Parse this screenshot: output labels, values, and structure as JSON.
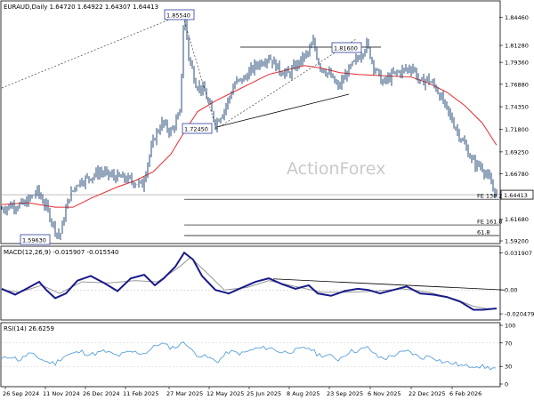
{
  "chart_data": [
    {
      "type": "line",
      "panel": "price",
      "title": "EURAUD,Daily  1.64720 1.64922 1.64307 1.64413",
      "watermark": "ActionForex",
      "ylim": [
        1.59,
        1.862
      ],
      "yticks": [
        1.8446,
        1.8128,
        1.7936,
        1.7688,
        1.7435,
        1.718,
        1.6925,
        1.6678,
        1.64413,
        1.6168,
        1.592
      ],
      "ytick_labels": [
        "1.84460",
        "1.81280",
        "1.79360",
        "1.76880",
        "1.74350",
        "1.71800",
        "1.69250",
        "1.66780",
        "1.64413",
        "1.61680",
        "1.59200"
      ],
      "current_price": 1.64413,
      "current_price_label": "1.64413",
      "x_dates": [
        "26 Sep 2024",
        "11 Nov 2024",
        "26 Dec 2024",
        "11 Feb 2025",
        "27 Mar 2025",
        "12 May 2025",
        "25 Jun 2025",
        "8 Aug 2025",
        "23 Sep 2025",
        "6 Nov 2025",
        "22 Dec 2025",
        "6 Feb 2026"
      ],
      "close_series": {
        "name": "EURAUD close",
        "color": "#2a4d78",
        "points": [
          [
            0,
            1.628
          ],
          [
            10,
            1.632
          ],
          [
            25,
            1.633
          ],
          [
            40,
            1.648
          ],
          [
            50,
            1.63
          ],
          [
            60,
            1.605
          ],
          [
            65,
            1.5963
          ],
          [
            75,
            1.64
          ],
          [
            85,
            1.658
          ],
          [
            95,
            1.662
          ],
          [
            110,
            1.67
          ],
          [
            125,
            1.665
          ],
          [
            140,
            1.662
          ],
          [
            150,
            1.658
          ],
          [
            158,
            1.655
          ],
          [
            165,
            1.685
          ],
          [
            172,
            1.71
          ],
          [
            180,
            1.725
          ],
          [
            190,
            1.715
          ],
          [
            200,
            1.735
          ],
          [
            205,
            1.8554
          ],
          [
            210,
            1.8
          ],
          [
            218,
            1.77
          ],
          [
            228,
            1.76
          ],
          [
            240,
            1.7245
          ],
          [
            250,
            1.74
          ],
          [
            262,
            1.77
          ],
          [
            272,
            1.775
          ],
          [
            285,
            1.79
          ],
          [
            300,
            1.8
          ],
          [
            312,
            1.785
          ],
          [
            322,
            1.78
          ],
          [
            335,
            1.795
          ],
          [
            345,
            1.805
          ],
          [
            350,
            1.816
          ],
          [
            357,
            1.79
          ],
          [
            368,
            1.78
          ],
          [
            378,
            1.765
          ],
          [
            390,
            1.785
          ],
          [
            400,
            1.798
          ],
          [
            410,
            1.814
          ],
          [
            418,
            1.79
          ],
          [
            428,
            1.77
          ],
          [
            440,
            1.78
          ],
          [
            452,
            1.785
          ],
          [
            462,
            1.788
          ],
          [
            470,
            1.77
          ],
          [
            478,
            1.775
          ],
          [
            488,
            1.765
          ],
          [
            500,
            1.74
          ],
          [
            510,
            1.72
          ],
          [
            520,
            1.7
          ],
          [
            530,
            1.68
          ],
          [
            540,
            1.675
          ],
          [
            548,
            1.66
          ],
          [
            556,
            1.6441
          ]
        ]
      },
      "ma_series": {
        "name": "moving average",
        "color": "#e8292b",
        "points": [
          [
            0,
            1.633
          ],
          [
            30,
            1.635
          ],
          [
            60,
            1.63
          ],
          [
            80,
            1.63
          ],
          [
            100,
            1.64
          ],
          [
            130,
            1.653
          ],
          [
            150,
            1.66
          ],
          [
            170,
            1.67
          ],
          [
            190,
            1.69
          ],
          [
            205,
            1.715
          ],
          [
            220,
            1.738
          ],
          [
            240,
            1.75
          ],
          [
            260,
            1.76
          ],
          [
            280,
            1.77
          ],
          [
            300,
            1.78
          ],
          [
            320,
            1.785
          ],
          [
            340,
            1.79
          ],
          [
            360,
            1.787
          ],
          [
            380,
            1.782
          ],
          [
            400,
            1.78
          ],
          [
            420,
            1.779
          ],
          [
            440,
            1.778
          ],
          [
            460,
            1.777
          ],
          [
            480,
            1.77
          ],
          [
            500,
            1.76
          ],
          [
            520,
            1.745
          ],
          [
            540,
            1.725
          ],
          [
            556,
            1.7
          ]
        ]
      },
      "annotations": [
        {
          "label": "1.85540",
          "value": 1.8554
        },
        {
          "label": "1.81600",
          "value": 1.816
        },
        {
          "label": "1.72450",
          "value": 1.7245
        },
        {
          "label": "1.59630",
          "value": 1.5963
        }
      ],
      "fib_levels": [
        {
          "label": "FE 138.2",
          "value": 1.639
        },
        {
          "label": "FE 161.8",
          "value": 1.61
        },
        {
          "label": "61.8",
          "value": 1.598
        }
      ]
    },
    {
      "type": "line",
      "panel": "macd",
      "title": "MACD(12,26,9) -0.015907 -0.015540",
      "ylim": [
        -0.025,
        0.036
      ],
      "ytick_labels": [
        "0.031907",
        "0.00",
        "-0.020479"
      ],
      "yticks": [
        0.031907,
        0.0,
        -0.020479
      ],
      "macd_line": {
        "name": "MACD",
        "color": "#1a1a8a",
        "points": [
          [
            0,
            0.001
          ],
          [
            15,
            -0.004
          ],
          [
            30,
            0.002
          ],
          [
            42,
            0.007
          ],
          [
            50,
            0.0
          ],
          [
            60,
            -0.007
          ],
          [
            72,
            -0.003
          ],
          [
            85,
            0.008
          ],
          [
            100,
            0.012
          ],
          [
            115,
            0.006
          ],
          [
            130,
            -0.001
          ],
          [
            145,
            0.01
          ],
          [
            160,
            0.013
          ],
          [
            172,
            0.004
          ],
          [
            182,
            0.01
          ],
          [
            195,
            0.02
          ],
          [
            205,
            0.032
          ],
          [
            215,
            0.026
          ],
          [
            225,
            0.012
          ],
          [
            240,
            0.0
          ],
          [
            255,
            -0.003
          ],
          [
            270,
            0.002
          ],
          [
            285,
            0.007
          ],
          [
            300,
            0.01
          ],
          [
            315,
            0.005
          ],
          [
            330,
            0.001
          ],
          [
            345,
            0.004
          ],
          [
            355,
            -0.003
          ],
          [
            370,
            -0.005
          ],
          [
            385,
            -0.001
          ],
          [
            400,
            0.001
          ],
          [
            412,
            0.0
          ],
          [
            425,
            -0.003
          ],
          [
            440,
            0.0
          ],
          [
            455,
            0.003
          ],
          [
            470,
            -0.003
          ],
          [
            485,
            -0.004
          ],
          [
            500,
            -0.006
          ],
          [
            515,
            -0.01
          ],
          [
            530,
            -0.017
          ],
          [
            540,
            -0.017
          ],
          [
            556,
            -0.0159
          ]
        ]
      },
      "signal_line": {
        "name": "Signal",
        "color": "#8c8c8c",
        "points": [
          [
            0,
            0.0
          ],
          [
            20,
            -0.002
          ],
          [
            45,
            0.004
          ],
          [
            65,
            -0.003
          ],
          [
            90,
            0.007
          ],
          [
            120,
            0.006
          ],
          [
            150,
            0.008
          ],
          [
            175,
            0.007
          ],
          [
            200,
            0.02
          ],
          [
            212,
            0.028
          ],
          [
            230,
            0.015
          ],
          [
            250,
            0.0
          ],
          [
            275,
            0.002
          ],
          [
            300,
            0.008
          ],
          [
            330,
            0.003
          ],
          [
            360,
            -0.002
          ],
          [
            390,
            -0.002
          ],
          [
            420,
            -0.001
          ],
          [
            450,
            0.001
          ],
          [
            480,
            -0.002
          ],
          [
            510,
            -0.008
          ],
          [
            530,
            -0.014
          ],
          [
            545,
            -0.016
          ],
          [
            556,
            -0.0155
          ]
        ]
      },
      "trendline": [
        [
          305,
          0.0095
        ],
        [
          565,
          0.0
        ]
      ]
    },
    {
      "type": "line",
      "panel": "rsi",
      "title": "RSI(14) 26.6259",
      "ylim": [
        0,
        100
      ],
      "yticks": [
        100,
        70,
        30,
        0
      ],
      "ytick_labels": [
        "100",
        "70",
        "30",
        "0"
      ],
      "rsi_line": {
        "name": "RSI",
        "color": "#5aa0d8",
        "points": [
          [
            0,
            42
          ],
          [
            10,
            48
          ],
          [
            20,
            40
          ],
          [
            30,
            52
          ],
          [
            40,
            46
          ],
          [
            50,
            38
          ],
          [
            60,
            35
          ],
          [
            70,
            48
          ],
          [
            80,
            52
          ],
          [
            90,
            55
          ],
          [
            100,
            50
          ],
          [
            115,
            56
          ],
          [
            130,
            48
          ],
          [
            145,
            55
          ],
          [
            160,
            52
          ],
          [
            170,
            62
          ],
          [
            178,
            70
          ],
          [
            190,
            62
          ],
          [
            200,
            65
          ],
          [
            205,
            75
          ],
          [
            212,
            58
          ],
          [
            220,
            50
          ],
          [
            232,
            45
          ],
          [
            242,
            38
          ],
          [
            255,
            55
          ],
          [
            270,
            52
          ],
          [
            285,
            60
          ],
          [
            300,
            62
          ],
          [
            315,
            54
          ],
          [
            330,
            57
          ],
          [
            345,
            62
          ],
          [
            355,
            50
          ],
          [
            368,
            48
          ],
          [
            378,
            42
          ],
          [
            390,
            55
          ],
          [
            402,
            58
          ],
          [
            412,
            62
          ],
          [
            422,
            46
          ],
          [
            432,
            44
          ],
          [
            445,
            52
          ],
          [
            458,
            56
          ],
          [
            470,
            44
          ],
          [
            482,
            48
          ],
          [
            495,
            38
          ],
          [
            508,
            35
          ],
          [
            520,
            30
          ],
          [
            532,
            32
          ],
          [
            545,
            28
          ],
          [
            556,
            26.6
          ]
        ]
      }
    }
  ]
}
